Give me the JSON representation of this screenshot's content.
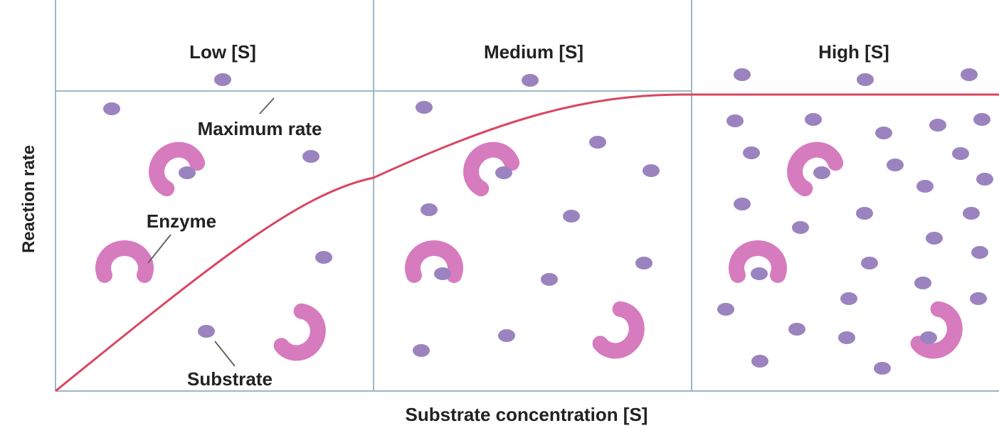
{
  "panels": [
    {
      "label": "Low [S]"
    },
    {
      "label": "Medium [S]"
    },
    {
      "label": "High [S]"
    }
  ],
  "annotations": {
    "max_rate": "Maximum rate",
    "enzyme": "Enzyme",
    "substrate": "Substrate"
  },
  "axes": {
    "y_label": "Reaction rate",
    "x_label": "Substrate concentration [S]"
  }
}
